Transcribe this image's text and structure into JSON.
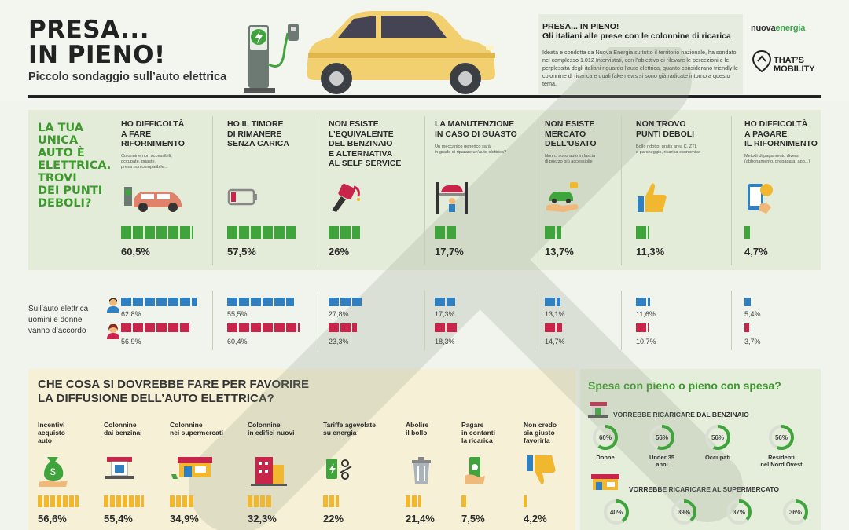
{
  "header": {
    "title_line1": "PRESA...",
    "title_line2": "IN PIENO!",
    "subtitle": "Piccolo sondaggio sull’auto elettrica",
    "intro_title_line1": "PRESA... IN PIENO!",
    "intro_title_line2": "Gli italiani alle prese con le colonnine di ricarica",
    "intro_text": "Ideata e condotta da Nuova Energia su tutto il territorio nazionale, ha sondato nel complesso 1.012 Intervistati, con l’obiettivo di rilevare le percezioni e le perplessità degli italiani riguardo l’auto elettrica, quanto considerano friendly le colonnine di ricarica e quali fake news si sono già radicate intorno a questo tema.",
    "logo_nuova_a": "nuova",
    "logo_nuova_b": "energia",
    "logo_tm_line1": "THAT’S",
    "logo_tm_line2": "MOBILITY"
  },
  "section1": {
    "question": [
      "LA TUA",
      "UNICA",
      "AUTO È",
      "ELETTRICA.",
      "TROVI",
      "DEI PUNTI",
      "DEBOLI?"
    ],
    "columns": [
      {
        "title": [
          "HO DIFFICOLTÀ",
          "A FARE",
          "RIFORNIMENTO"
        ],
        "note": [
          "Colonnine non accessibili,",
          "occupate, guaste,",
          "presa non compatibile..."
        ],
        "value": 60.5,
        "pct": "60,5%",
        "icon": "car-charging-icon",
        "blocks": 6
      },
      {
        "title": [
          "HO IL TIMORE",
          "DI RIMANERE",
          "SENZA CARICA"
        ],
        "note": [],
        "value": 57.5,
        "pct": "57,5%",
        "icon": "low-battery-icon",
        "blocks": 6
      },
      {
        "title": [
          "NON ESISTE",
          "L’EQUIVALENTE",
          "DEL BENZINAIO",
          "E ALTERNATIVA",
          "AL SELF SERVICE"
        ],
        "note": [],
        "value": 26,
        "pct": "26%",
        "icon": "fuel-nozzle-icon",
        "blocks": 3
      },
      {
        "title": [
          "LA MANUTENZIONE",
          "IN CASO DI GUASTO"
        ],
        "note": [
          "Un meccanico generico sarà",
          "in grado di riparare un’auto elettrica?"
        ],
        "value": 17.7,
        "pct": "17,7%",
        "icon": "car-lift-mechanic-icon",
        "blocks": 2
      },
      {
        "title": [
          "NON ESISTE",
          "MERCATO",
          "DELL’USATO"
        ],
        "note": [
          "Non ci sono auto in fascia",
          "di prezzo più accessibile"
        ],
        "value": 13.7,
        "pct": "13,7%",
        "icon": "car-in-hand-icon",
        "blocks": 2
      },
      {
        "title": [
          "NON TROVO",
          "PUNTI DEBOLI"
        ],
        "note": [
          "Bollo ridotto, gratis area C, ZTL",
          "e parcheggio, ricarica economica"
        ],
        "value": 11.3,
        "pct": "11,3%",
        "icon": "thumbs-up-icon",
        "blocks": 2
      },
      {
        "title": [
          "HO DIFFICOLTÀ",
          "A PAGARE",
          "IL RIFORNIMENTO"
        ],
        "note": [
          "Metodi di pagamento diversi",
          "(abbonamento, prepagata, app...)"
        ],
        "value": 4.7,
        "pct": "4,7%",
        "icon": "phone-payment-icon",
        "blocks": 1
      }
    ]
  },
  "gender": {
    "label": [
      "Sull’auto elettrica",
      "uomini e donne",
      "vanno d’accordo"
    ],
    "men": [
      {
        "value": 62.8,
        "pct": "62,8%"
      },
      {
        "value": 55.5,
        "pct": "55,5%"
      },
      {
        "value": 27.8,
        "pct": "27,8%"
      },
      {
        "value": 17.3,
        "pct": "17,3%"
      },
      {
        "value": 13.1,
        "pct": "13,1%"
      },
      {
        "value": 11.6,
        "pct": "11,6%"
      },
      {
        "value": 5.4,
        "pct": "5,4%"
      }
    ],
    "women": [
      {
        "value": 56.9,
        "pct": "56,9%"
      },
      {
        "value": 60.4,
        "pct": "60,4%"
      },
      {
        "value": 23.3,
        "pct": "23,3%"
      },
      {
        "value": 18.3,
        "pct": "18,3%"
      },
      {
        "value": 14.7,
        "pct": "14,7%"
      },
      {
        "value": 10.7,
        "pct": "10,7%"
      },
      {
        "value": 3.7,
        "pct": "3,7%"
      }
    ]
  },
  "section2": {
    "question": [
      "CHE COSA SI DOVREBBE FARE PER FAVORIRE",
      "LA DIFFUSIONE DELL’AUTO ELETTRICA?"
    ],
    "columns": [
      {
        "title": [
          "Incentivi",
          "acquisto",
          "auto"
        ],
        "value": 56.6,
        "pct": "56,6%",
        "icon": "money-bag-hand-icon"
      },
      {
        "title": [
          "Colonnine",
          "dai benzinai"
        ],
        "value": 55.4,
        "pct": "55,4%",
        "icon": "gas-station-icon"
      },
      {
        "title": [
          "Colonnine",
          "nei supermercati"
        ],
        "value": 34.9,
        "pct": "34,9%",
        "icon": "supermarket-icon"
      },
      {
        "title": [
          "Colonnine",
          "in edifici nuovi"
        ],
        "value": 32.3,
        "pct": "32,3%",
        "icon": "building-icon"
      },
      {
        "title": [
          "Tariffe agevolate",
          "su energia"
        ],
        "value": 22,
        "pct": "22%",
        "icon": "discount-icon"
      },
      {
        "title": [
          "Abolire",
          "il bollo"
        ],
        "value": 21.4,
        "pct": "21,4%",
        "icon": "trash-bin-icon"
      },
      {
        "title": [
          "Pagare",
          "in contanti",
          "la ricarica"
        ],
        "value": 7.5,
        "pct": "7,5%",
        "icon": "cash-hand-icon"
      },
      {
        "title": [
          "Non credo",
          "sia giusto",
          "favorirla"
        ],
        "value": 4.2,
        "pct": "4,2%",
        "icon": "thumbs-down-icon"
      }
    ]
  },
  "section3": {
    "title": "Spesa con pieno o pieno con spesa?",
    "sub1": "VORREBBE RICARICARE DAL BENZINAIO",
    "sub2": "VORREBBE RICARICARE AL SUPERMERCATO",
    "row1": [
      {
        "value": 60,
        "pct": "60%",
        "label": [
          "Donne"
        ]
      },
      {
        "value": 56,
        "pct": "56%",
        "label": [
          "Under 35",
          "anni"
        ]
      },
      {
        "value": 56,
        "pct": "56%",
        "label": [
          "Occupati"
        ]
      },
      {
        "value": 56,
        "pct": "56%",
        "label": [
          "Residenti",
          "nel Nord Ovest"
        ]
      }
    ],
    "row2": [
      {
        "value": 40,
        "pct": "40%"
      },
      {
        "value": 39,
        "pct": "39%"
      },
      {
        "value": 37,
        "pct": "37%"
      },
      {
        "value": 36,
        "pct": "36%"
      }
    ]
  },
  "colors": {
    "green": "#3fa43b",
    "blue": "#2f7fc1",
    "red": "#c9254b",
    "yellow": "#f1b72f",
    "title_green": "#3c9a2c"
  }
}
